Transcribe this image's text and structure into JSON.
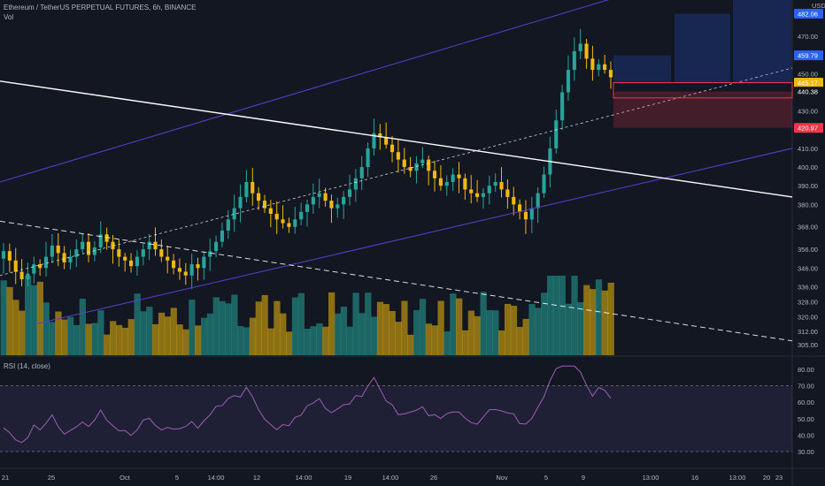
{
  "header": {
    "title": "Ethereum / TetherUS PERPETUAL FUTURES, 6h, BINANCE",
    "volume_label": "Vol",
    "rsi_label": "RSI (14, close)"
  },
  "price_axis": {
    "currency": "USDT",
    "ticks": [
      "305.00",
      "312.00",
      "320.00",
      "328.00",
      "336.00",
      "346.00",
      "356.00",
      "368.00",
      "380.00",
      "390.00",
      "400.00",
      "410.00",
      "420.00",
      "430.00",
      "440.00",
      "450.00",
      "460.00",
      "470.00"
    ]
  },
  "price_tags": [
    {
      "label": "482.06",
      "color": "#2962ff"
    },
    {
      "label": "459.79",
      "color": "#2962ff"
    },
    {
      "label": "445.17",
      "color": "#f0b90b"
    },
    {
      "label": "440.38",
      "color": "#131722"
    },
    {
      "label": "420.97",
      "color": "#f23645"
    }
  ],
  "rsi_axis": {
    "ticks": [
      "30.00",
      "40.00",
      "50.00",
      "60.00",
      "70.00",
      "80.00"
    ]
  },
  "time_axis": {
    "ticks": [
      "21",
      "25",
      "Oct",
      "5",
      "14:00",
      "12",
      "14:00",
      "19",
      "14:00",
      "26",
      "Nov",
      "5",
      "9",
      "13:00",
      "16",
      "13:00",
      "20",
      "23"
    ]
  },
  "colors": {
    "up": "#26a69a",
    "down": "#f0b90b",
    "channel": "#5b3fd4",
    "trendline": "#ffffff",
    "rsi": "#9c5fb5",
    "target": "#2962ff",
    "stop": "#f23645"
  },
  "chart_data": {
    "type": "candlestick",
    "title": "Ethereum / TetherUS PERPETUAL FUTURES, 6h, BINANCE",
    "yunit": "USDT",
    "ylim": [
      305,
      482
    ],
    "x_range": [
      "21 Sep",
      "23 Nov"
    ],
    "close_series": [
      355,
      350,
      344,
      340,
      343,
      348,
      346,
      352,
      358,
      354,
      349,
      352,
      356,
      360,
      353,
      357,
      364,
      360,
      356,
      352,
      350,
      347,
      352,
      356,
      360,
      356,
      352,
      350,
      346,
      344,
      342,
      348,
      346,
      352,
      355,
      360,
      366,
      372,
      378,
      384,
      392,
      386,
      382,
      378,
      375,
      372,
      370,
      368,
      372,
      376,
      380,
      384,
      386,
      382,
      378,
      380,
      384,
      388,
      394,
      400,
      410,
      418,
      416,
      412,
      408,
      404,
      400,
      398,
      402,
      404,
      398,
      394,
      390,
      392,
      396,
      394,
      388,
      386,
      384,
      386,
      390,
      392,
      388,
      384,
      380,
      376,
      372,
      378,
      386,
      396,
      410,
      425,
      440,
      452,
      462,
      466,
      458,
      452,
      455,
      452,
      448
    ],
    "rsi": {
      "period": 14,
      "range": [
        30,
        80
      ],
      "overbought": 70,
      "oversold": 30,
      "last": 58
    }
  }
}
